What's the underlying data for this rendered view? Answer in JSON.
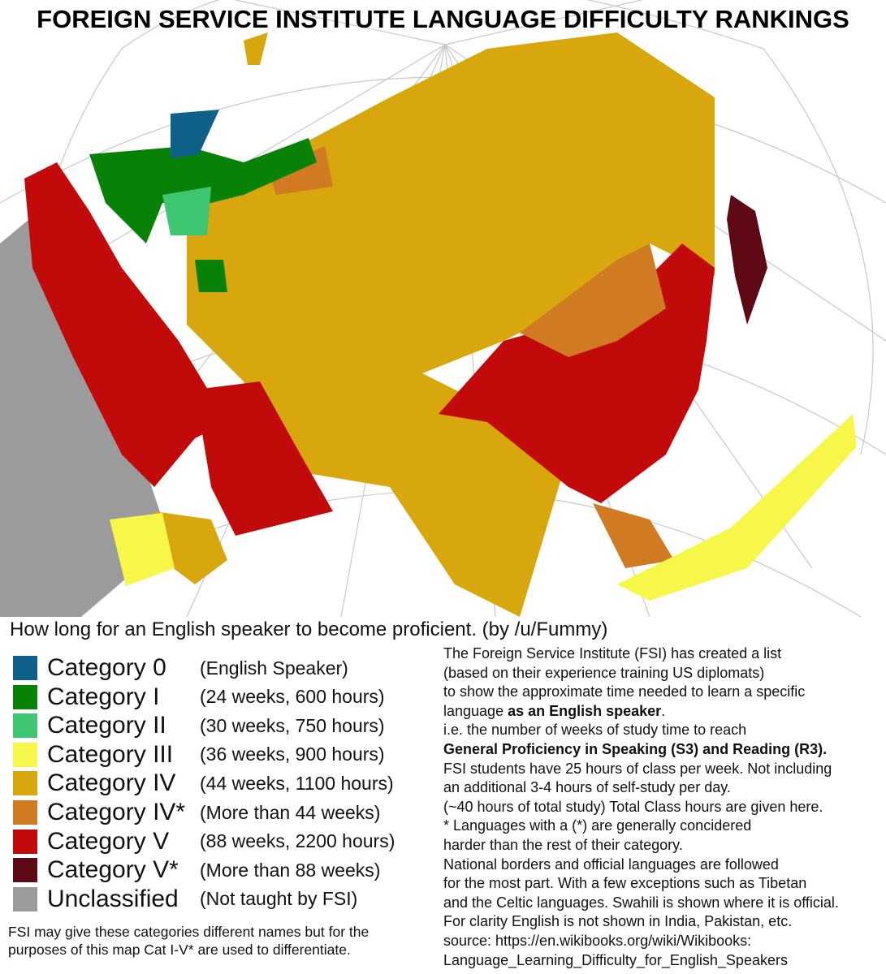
{
  "header": {
    "title": "FOREIGN SERVICE INSTITUTE LANGUAGE DIFFICULTY RANKINGS",
    "subtitle": "How long for an English speaker to become proficient. (by /u/Fummy)"
  },
  "legend": {
    "items": [
      {
        "color": "#0f6089",
        "category": "Category 0",
        "description": "(English Speaker)"
      },
      {
        "color": "#078207",
        "category": "Category I",
        "description": "(24 weeks, 600 hours)"
      },
      {
        "color": "#3ec672",
        "category": "Category II",
        "description": "(30 weeks, 750 hours)"
      },
      {
        "color": "#f7f74a",
        "category": "Category III",
        "description": "(36 weeks, 900 hours)"
      },
      {
        "color": "#d8a60d",
        "category": "Category IV",
        "description": "(44 weeks, 1100 hours)"
      },
      {
        "color": "#d07a22",
        "category": "Category IV*",
        "description": "(More than 44 weeks)"
      },
      {
        "color": "#c20a0a",
        "category": "Category V",
        "description": "(88 weeks, 2200 hours)"
      },
      {
        "color": "#5e0915",
        "category": "Category V*",
        "description": "(More than 88 weeks)"
      },
      {
        "color": "#9b9b9b",
        "category": "Unclassified",
        "description": "(Not taught by FSI)"
      }
    ]
  },
  "notes": {
    "lines": [
      [
        {
          "text": "The Foreign Service Institute (FSI) has created a list",
          "bold": false
        }
      ],
      [
        {
          "text": "(based on their experience training US diplomats)",
          "bold": false
        }
      ],
      [
        {
          "text": "to show the approximate time needed to learn a specific",
          "bold": false
        }
      ],
      [
        {
          "text": "language ",
          "bold": false
        },
        {
          "text": "as an English speaker",
          "bold": true
        },
        {
          "text": ".",
          "bold": false
        }
      ],
      [
        {
          "text": "i.e. the number of weeks of study time to reach",
          "bold": false
        }
      ],
      [
        {
          "text": "General Proficiency in Speaking (S3) and Reading (R3).",
          "bold": true
        }
      ],
      [
        {
          "text": "FSI students have 25 hours of class per week. Not including",
          "bold": false
        }
      ],
      [
        {
          "text": "an additional 3-4 hours of self-study per day.",
          "bold": false
        }
      ],
      [
        {
          "text": "(~40 hours of total study) Total Class hours are given here.",
          "bold": false
        }
      ],
      [
        {
          "text": "* Languages with a (*) are generally concidered",
          "bold": false
        }
      ],
      [
        {
          "text": "harder than the rest of their category.",
          "bold": false
        }
      ],
      [
        {
          "text": "National borders and official languages are followed",
          "bold": false
        }
      ],
      [
        {
          "text": "for the most part. With a few exceptions such as Tibetan",
          "bold": false
        }
      ],
      [
        {
          "text": "and the Celtic languages. Swahili is shown where it is official.",
          "bold": false
        }
      ],
      [
        {
          "text": "For clarity English is not shown in India, Pakistan, etc.",
          "bold": false
        }
      ],
      [
        {
          "text": "source: https://en.wikibooks.org/wiki/Wikibooks:",
          "bold": false
        }
      ],
      [
        {
          "text": "Language_Learning_Difficulty_for_English_Speakers",
          "bold": false
        }
      ]
    ]
  },
  "footnote": {
    "lines": [
      "FSI may give these categories different names but for the",
      "purposes of this map Cat I-V* are used to differentiate."
    ]
  }
}
